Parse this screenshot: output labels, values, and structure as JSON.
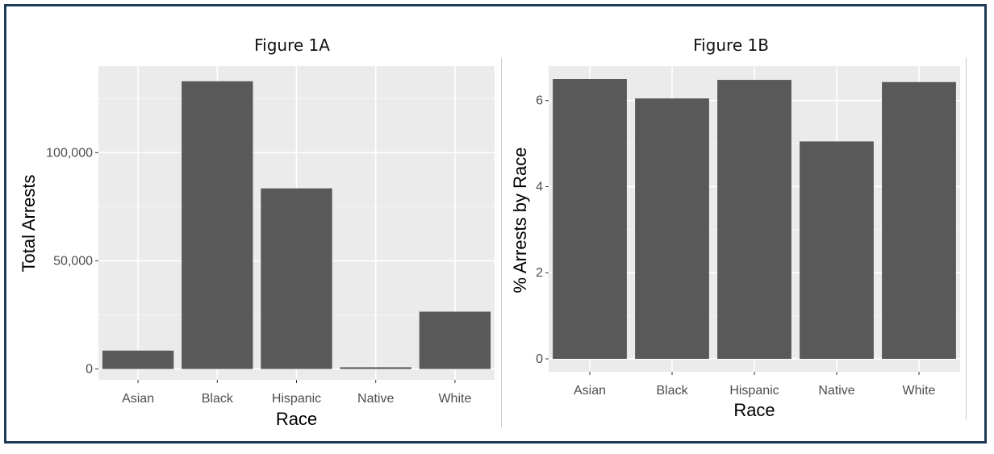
{
  "colors": {
    "panel_background": "#ebebeb",
    "grid_major": "#ffffff",
    "bar_fill": "#595959",
    "frame_border": "#1f3b57",
    "tick_text": "#4d4d4d"
  },
  "chart_data": [
    {
      "type": "bar",
      "title": "Figure 1A",
      "xlabel": "Race",
      "ylabel": "Total Arrests",
      "categories": [
        "Asian",
        "Black",
        "Hispanic",
        "Native",
        "White"
      ],
      "values": [
        8500,
        133000,
        83500,
        800,
        26500
      ],
      "ylim": [
        -5000,
        140000
      ],
      "yticks": [
        0,
        50000,
        100000
      ],
      "ytick_labels": [
        "0",
        "50,000",
        "100,000"
      ],
      "grid": true,
      "legend": "none"
    },
    {
      "type": "bar",
      "title": "Figure 1B",
      "xlabel": "Race",
      "ylabel": "% Arrests by Race",
      "categories": [
        "Asian",
        "Black",
        "Hispanic",
        "Native",
        "White"
      ],
      "values": [
        6.5,
        6.05,
        6.48,
        5.05,
        6.43
      ],
      "ylim": [
        -0.3,
        6.8
      ],
      "yticks": [
        0,
        2,
        4,
        6
      ],
      "ytick_labels": [
        "0",
        "2",
        "4",
        "6"
      ],
      "grid": true,
      "legend": "none"
    }
  ]
}
